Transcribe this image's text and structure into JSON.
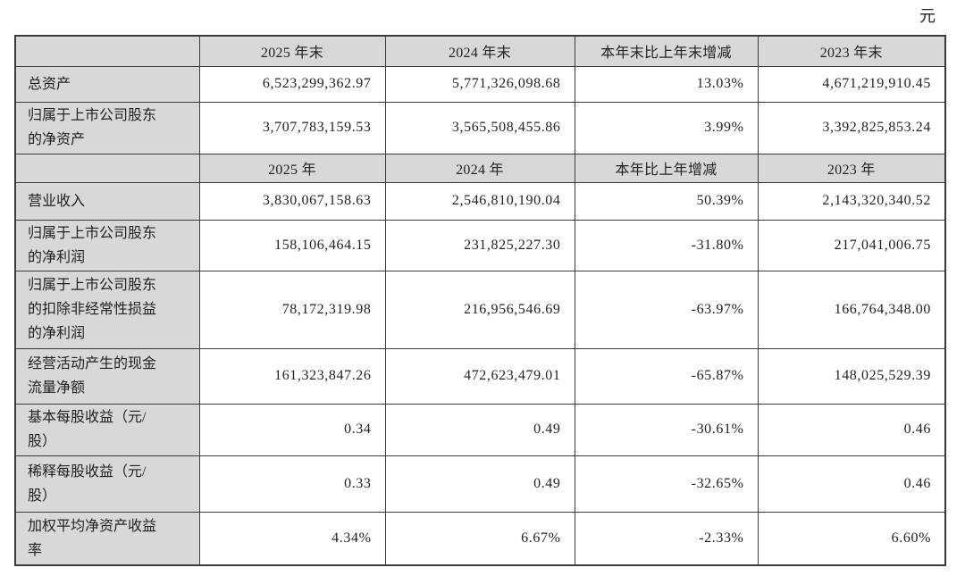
{
  "unit_label": "元",
  "colors": {
    "header_bg": "#d8d8d8",
    "border": "#3a3a3a",
    "text": "#222222"
  },
  "table": {
    "sections": [
      {
        "headers": [
          "",
          "2025 年末",
          "2024 年末",
          "本年末比上年末增减",
          "2023 年末"
        ],
        "rows": [
          {
            "label": "总资产",
            "values": [
              "6,523,299,362.97",
              "5,771,326,098.68",
              "13.03%",
              "4,671,219,910.45"
            ]
          },
          {
            "label": "归属于上市公司股东\n的净资产",
            "values": [
              "3,707,783,159.53",
              "3,565,508,455.86",
              "3.99%",
              "3,392,825,853.24"
            ]
          }
        ]
      },
      {
        "headers": [
          "",
          "2025 年",
          "2024 年",
          "本年比上年增减",
          "2023 年"
        ],
        "rows": [
          {
            "label": "营业收入",
            "values": [
              "3,830,067,158.63",
              "2,546,810,190.04",
              "50.39%",
              "2,143,320,340.52"
            ]
          },
          {
            "label": "归属于上市公司股东\n的净利润",
            "values": [
              "158,106,464.15",
              "231,825,227.30",
              "-31.80%",
              "217,041,006.75"
            ]
          },
          {
            "label": "归属于上市公司股东\n的扣除非经常性损益\n的净利润",
            "values": [
              "78,172,319.98",
              "216,956,546.69",
              "-63.97%",
              "166,764,348.00"
            ]
          },
          {
            "label": "经营活动产生的现金\n流量净额",
            "values": [
              "161,323,847.26",
              "472,623,479.01",
              "-65.87%",
              "148,025,529.39"
            ]
          },
          {
            "label": "基本每股收益（元/\n股）",
            "values": [
              "0.34",
              "0.49",
              "-30.61%",
              "0.46"
            ]
          },
          {
            "label": "稀释每股收益（元/\n股）",
            "values": [
              "0.33",
              "0.49",
              "-32.65%",
              "0.46"
            ]
          },
          {
            "label": "加权平均净资产收益\n率",
            "values": [
              "4.34%",
              "6.67%",
              "-2.33%",
              "6.60%"
            ]
          }
        ]
      }
    ]
  }
}
